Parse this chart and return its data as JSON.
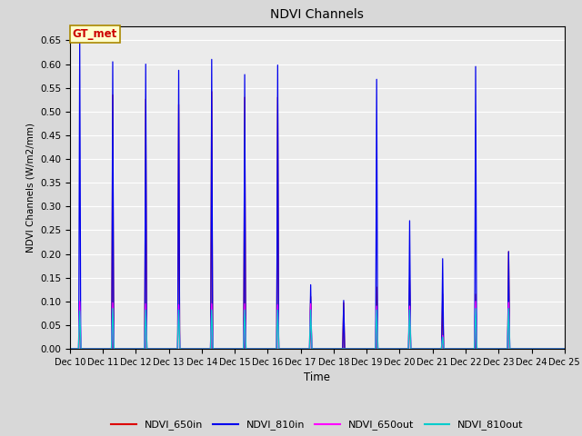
{
  "title": "NDVI Channels",
  "xlabel": "Time",
  "ylabel": "NDVI Channels (W/m2/mm)",
  "ylim": [
    0.0,
    0.68
  ],
  "yticks": [
    0.0,
    0.05,
    0.1,
    0.15,
    0.2,
    0.25,
    0.3,
    0.35,
    0.4,
    0.45,
    0.5,
    0.55,
    0.6,
    0.65
  ],
  "annotation_text": "GT_met",
  "annotation_color": "#cc0000",
  "annotation_bg": "#ffffcc",
  "series_colors": {
    "NDVI_650in": "#dd0000",
    "NDVI_810in": "#0000ee",
    "NDVI_650out": "#ff00ff",
    "NDVI_810out": "#00cccc"
  },
  "background_color": "#ebebeb",
  "grid_color": "#ffffff",
  "n_days": 15,
  "start_day": 10,
  "spike_peaks": {
    "810in": [
      0.65,
      0.605,
      0.6,
      0.587,
      0.61,
      0.578,
      0.598,
      0.135,
      0.102,
      0.568,
      0.27,
      0.19,
      0.595,
      0.205,
      0.0
    ],
    "650in": [
      0.095,
      0.535,
      0.526,
      0.515,
      0.542,
      0.53,
      0.53,
      0.11,
      0.097,
      0.13,
      0.145,
      0.115,
      0.115,
      0.205,
      0.0
    ],
    "650out": [
      0.1,
      0.097,
      0.095,
      0.093,
      0.095,
      0.095,
      0.093,
      0.095,
      0.0,
      0.09,
      0.09,
      0.028,
      0.1,
      0.098,
      0.0
    ],
    "810out": [
      0.08,
      0.085,
      0.082,
      0.082,
      0.082,
      0.082,
      0.082,
      0.082,
      0.0,
      0.082,
      0.082,
      0.025,
      0.085,
      0.085,
      0.0
    ]
  }
}
